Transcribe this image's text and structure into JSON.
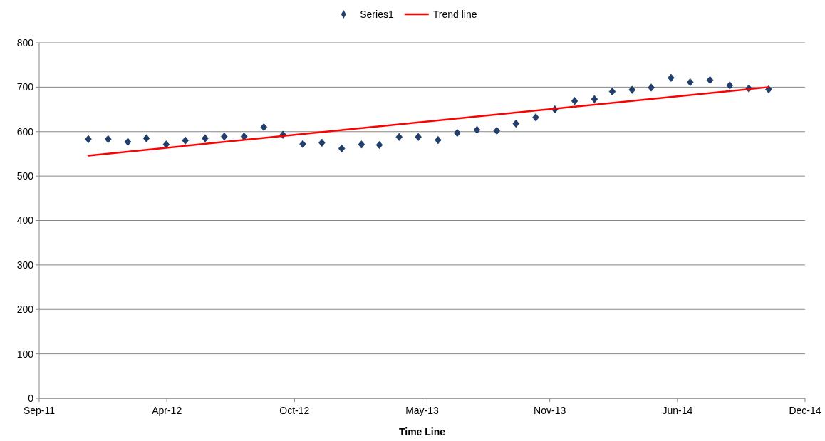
{
  "chart_data": {
    "type": "scatter",
    "xlabel": "Time Line",
    "legend": "top",
    "grid": "y",
    "xlim": [
      "2011-09-15",
      "2014-12-28"
    ],
    "xticks": [
      {
        "value": "2011-09-15",
        "label": "Sep-11"
      },
      {
        "value": "2012-04-02",
        "label": "Apr-12"
      },
      {
        "value": "2012-10-19",
        "label": "Oct-12"
      },
      {
        "value": "2013-05-07",
        "label": "May-13"
      },
      {
        "value": "2013-11-23",
        "label": "Nov-13"
      },
      {
        "value": "2014-06-11",
        "label": "Jun-14"
      },
      {
        "value": "2014-12-28",
        "label": "Dec-14"
      }
    ],
    "ylim": [
      0,
      800
    ],
    "yticks": [
      0,
      100,
      200,
      300,
      400,
      500,
      600,
      700,
      800
    ],
    "series": [
      {
        "name": "Series1",
        "marker": "diamond",
        "color": "#1f3f6e",
        "x": [
          "2011-12-01",
          "2012-01-01",
          "2012-02-01",
          "2012-03-01",
          "2012-04-01",
          "2012-05-01",
          "2012-06-01",
          "2012-07-01",
          "2012-08-01",
          "2012-09-01",
          "2012-10-01",
          "2012-11-01",
          "2012-12-01",
          "2013-01-01",
          "2013-02-01",
          "2013-03-01",
          "2013-04-01",
          "2013-05-01",
          "2013-06-01",
          "2013-07-01",
          "2013-08-01",
          "2013-09-01",
          "2013-10-01",
          "2013-11-01",
          "2013-12-01",
          "2014-01-01",
          "2014-02-01",
          "2014-03-01",
          "2014-04-01",
          "2014-05-01",
          "2014-06-01",
          "2014-07-01",
          "2014-08-01",
          "2014-09-01",
          "2014-10-01",
          "2014-11-01"
        ],
        "values": [
          583,
          583,
          577,
          585,
          571,
          580,
          585,
          589,
          589,
          610,
          593,
          572,
          575,
          562,
          571,
          570,
          588,
          588,
          581,
          597,
          604,
          602,
          618,
          632,
          650,
          669,
          673,
          690,
          694,
          699,
          721,
          711,
          716,
          704,
          697,
          695
        ]
      },
      {
        "name": "Trend line",
        "type": "line",
        "marker": "none",
        "color": "#ff0000",
        "x": [
          "2011-12-01",
          "2014-11-01"
        ],
        "values": [
          546,
          700
        ]
      }
    ]
  }
}
